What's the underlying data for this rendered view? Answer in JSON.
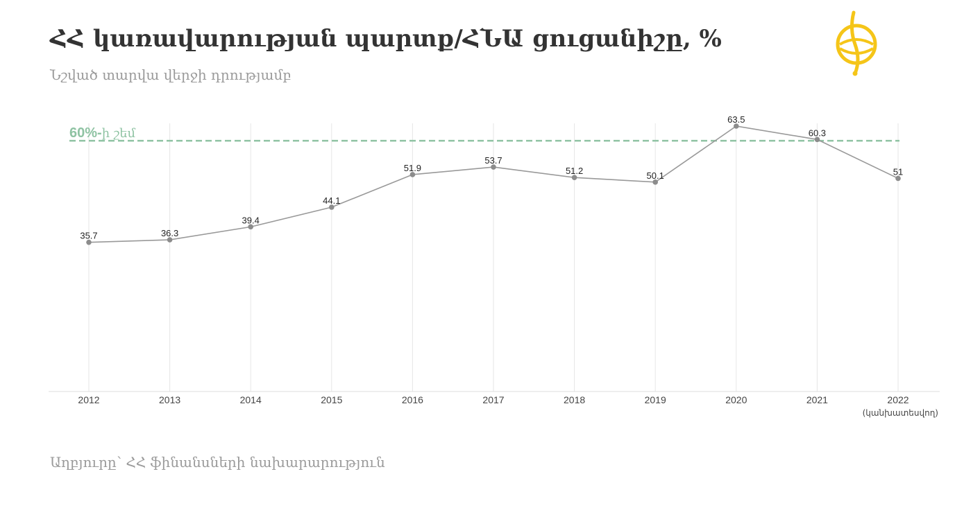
{
  "header": {
    "title": "ՀՀ կառավարության պարտք/ՀՆԱ ցուցանիշը, %",
    "subtitle": "Նշված տարվա վերջի դրությամբ"
  },
  "footer": {
    "source": "Աղբյուրը՝ ՀՀ ֆինանսների նախարարություն"
  },
  "colors": {
    "line": "#999999",
    "point": "#8c8c8c",
    "threshold": "#8fc3a3",
    "grid": "#e6e6e6",
    "logo": "#f5c518"
  },
  "chart_data": {
    "type": "line",
    "categories": [
      "2012",
      "2013",
      "2014",
      "2015",
      "2016",
      "2017",
      "2018",
      "2019",
      "2020",
      "2021",
      "2022"
    ],
    "category_notes": {
      "2022": "(կանխատեսվող)"
    },
    "values": [
      35.7,
      36.3,
      39.4,
      44.1,
      51.9,
      53.7,
      51.2,
      50.1,
      63.5,
      60.3,
      51
    ],
    "data_labels": [
      "35.7",
      "36.3",
      "39.4",
      "44.1",
      "51.9",
      "53.7",
      "51.2",
      "50.1",
      "63.5",
      "60.3",
      "51"
    ],
    "ylim": [
      0,
      65
    ],
    "reference_line": {
      "value": 60,
      "label_bold": "60%-",
      "label_rest": "ի շեմ"
    },
    "grid": "vertical",
    "xlabel": "",
    "ylabel": ""
  }
}
